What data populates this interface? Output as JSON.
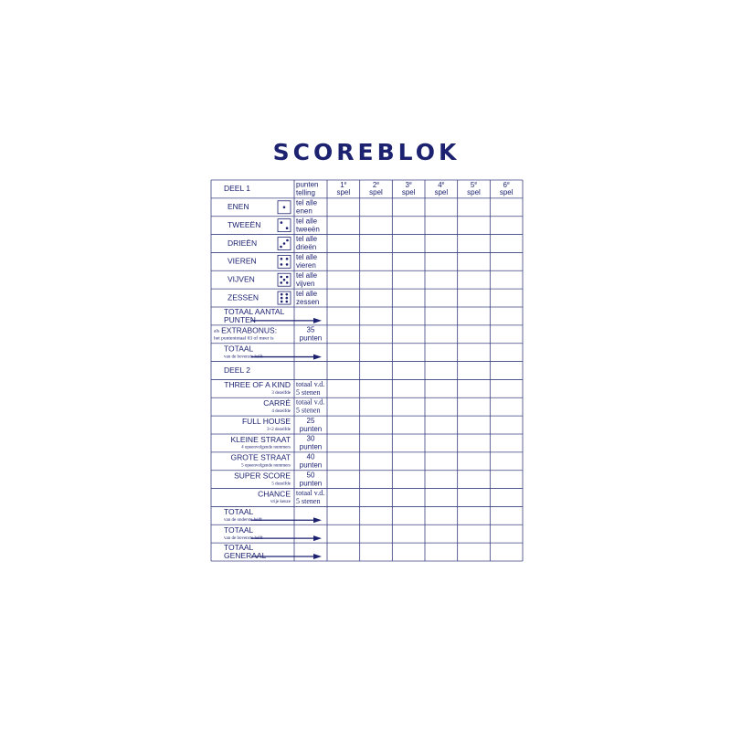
{
  "title": "SCOREBLOK",
  "header": {
    "section": "DEEL 1",
    "points": [
      "punten",
      "telling"
    ],
    "games": [
      {
        "number": "1",
        "ordinal": "e",
        "label": "spel"
      },
      {
        "number": "2",
        "ordinal": "e",
        "label": "spel"
      },
      {
        "number": "3",
        "ordinal": "e",
        "label": "spel"
      },
      {
        "number": "4",
        "ordinal": "e",
        "label": "spel"
      },
      {
        "number": "5",
        "ordinal": "e",
        "label": "spel"
      },
      {
        "number": "6",
        "ordinal": "e",
        "label": "spel"
      }
    ]
  },
  "rows": [
    {
      "label": [
        "ENEN"
      ],
      "dice": 1,
      "points": [
        "tel alle",
        "enen"
      ]
    },
    {
      "label": [
        "TWEEËN"
      ],
      "dice": 2,
      "points": [
        "tel alle",
        "tweeën"
      ]
    },
    {
      "label": [
        "DRIEËN"
      ],
      "dice": 3,
      "points": [
        "tel alle",
        "drieën"
      ]
    },
    {
      "label": [
        "VIEREN"
      ],
      "dice": 4,
      "points": [
        "tel alle",
        "vieren"
      ]
    },
    {
      "label": [
        "VIJVEN"
      ],
      "dice": 5,
      "points": [
        "tel alle",
        "vijven"
      ]
    },
    {
      "label": [
        "ZESSEN"
      ],
      "dice": 6,
      "points": [
        "tel alle",
        "zessen"
      ]
    },
    {
      "label": [
        "TOTAAL AANTAL",
        "PUNTEN"
      ],
      "arrow": true
    },
    {
      "prefix": "als",
      "label": [
        "EXTRABONUS:"
      ],
      "sublabel": "het puntentotaal 63 of meer is",
      "points": [
        "35",
        "punten"
      ]
    },
    {
      "label": [
        "TOTAAL"
      ],
      "sublabel": "van de bovenste helft",
      "arrow": true
    },
    {
      "section": "DEEL 2"
    },
    {
      "label": [
        "THREE OF A KIND"
      ],
      "sublabel": "3 dezelfde",
      "points": [
        "totaal v.d.",
        "5 stenen"
      ]
    },
    {
      "label": [
        "CARRÉ"
      ],
      "sublabel": "4 dezelfde",
      "points": [
        "totaal v.d.",
        "5 stenen"
      ]
    },
    {
      "label": [
        "FULL HOUSE"
      ],
      "sublabel": "3+2 dezelfde",
      "points": [
        "25",
        "punten"
      ]
    },
    {
      "label": [
        "KLEINE STRAAT"
      ],
      "sublabel": "4 opeenvolgende nummers",
      "points": [
        "30",
        "punten"
      ]
    },
    {
      "label": [
        "GROTE STRAAT"
      ],
      "sublabel": "5 opeenvolgende nummers",
      "points": [
        "40",
        "punten"
      ]
    },
    {
      "label": [
        "SUPER SCORE"
      ],
      "sublabel": "5 dezelfde",
      "points": [
        "50",
        "punten"
      ]
    },
    {
      "label": [
        "CHANCE"
      ],
      "sublabel": "vrije keuze",
      "points": [
        "totaal v.d.",
        "5 stenen"
      ]
    },
    {
      "label": [
        "TOTAAL"
      ],
      "sublabel": "van de onderste helft",
      "arrow": true
    },
    {
      "label": [
        "TOTAAL"
      ],
      "sublabel": "van de bovenste helft",
      "arrow": true
    },
    {
      "label": [
        "TOTAAL",
        "GENERAAL"
      ],
      "arrow": true
    }
  ]
}
